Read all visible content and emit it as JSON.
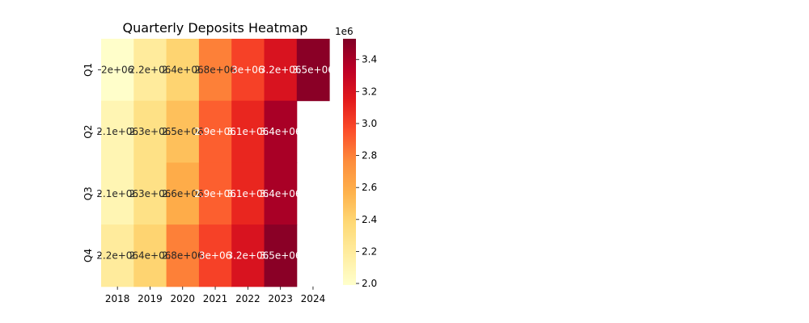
{
  "chart_data": {
    "type": "heatmap",
    "title": "Quarterly Deposits Heatmap",
    "xlabel": "",
    "ylabel": "",
    "x_categories": [
      "2018",
      "2019",
      "2020",
      "2021",
      "2022",
      "2023",
      "2024"
    ],
    "y_categories": [
      "Q1",
      "Q2",
      "Q3",
      "Q4"
    ],
    "values": [
      [
        2000000,
        2200000,
        2400000,
        2800000,
        3000000,
        3200000,
        3500000
      ],
      [
        2100000,
        2300000,
        2500000,
        2900000,
        3100000,
        3400000,
        null
      ],
      [
        2100000,
        2300000,
        2600000,
        2900000,
        3100000,
        3400000,
        null
      ],
      [
        2200000,
        2400000,
        2800000,
        3000000,
        3200000,
        3500000,
        null
      ]
    ],
    "annotations": [
      [
        "2e+06",
        "2.2e+06",
        "2.4e+06",
        "2.8e+06",
        "3e+06",
        "3.2e+06",
        "3.5e+06"
      ],
      [
        "2.1e+06",
        "2.3e+06",
        "2.5e+06",
        "2.9e+06",
        "3.1e+06",
        "3.4e+06",
        ""
      ],
      [
        "2.1e+06",
        "2.3e+06",
        "2.6e+06",
        "2.9e+06",
        "3.1e+06",
        "3.4e+06",
        ""
      ],
      [
        "2.2e+06",
        "2.4e+06",
        "2.8e+06",
        "3e+06",
        "3.2e+06",
        "3.5e+06",
        ""
      ]
    ],
    "colormap": "YlOrRd",
    "colormap_stops": [
      "#ffffcc",
      "#ffeda0",
      "#fed976",
      "#feb24c",
      "#fd8d3c",
      "#fc4e2a",
      "#e31a1c",
      "#bd0026",
      "#800026"
    ],
    "vmin": 1990000,
    "vmax": 3530000,
    "colorbar": {
      "ticks": [
        2.0,
        2.2,
        2.4,
        2.6,
        2.8,
        3.0,
        3.2,
        3.4
      ],
      "tick_labels": [
        "2.0",
        "2.2",
        "2.4",
        "2.6",
        "2.8",
        "3.0",
        "3.2",
        "3.4"
      ],
      "offset_label": "1e6",
      "scale": 1000000
    },
    "grid": false,
    "legend": "colorbar right"
  }
}
